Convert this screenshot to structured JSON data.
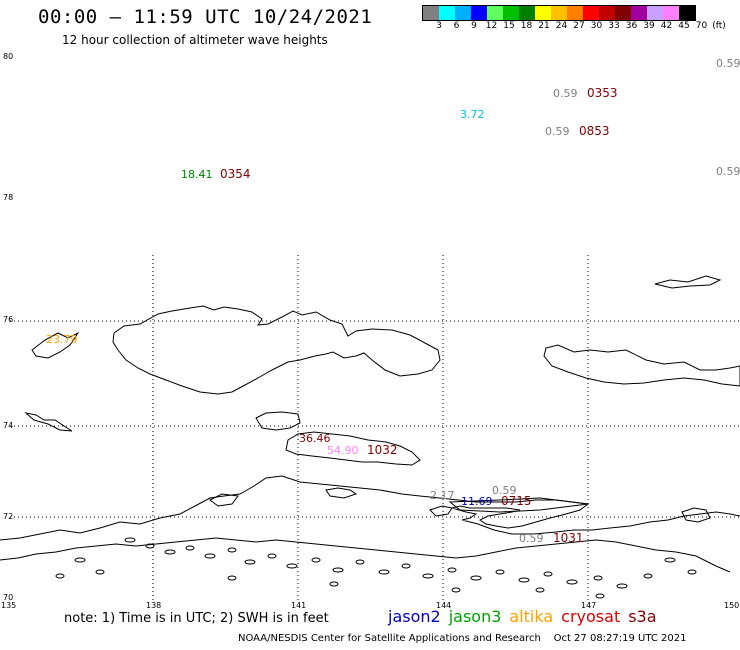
{
  "title": "00:00 – 11:59 UTC 10/24/2021",
  "subtitle": "12 hour collection of altimeter wave heights",
  "colorbar": {
    "colors": [
      "#808080",
      "#00ffff",
      "#00b0ff",
      "#0000ff",
      "#60ff60",
      "#00c000",
      "#008000",
      "#ffff00",
      "#ffc000",
      "#ff8000",
      "#ff0000",
      "#c00000",
      "#800000",
      "#a000a0",
      "#c8a0ff",
      "#ff80ff",
      "#000000"
    ],
    "labels": [
      "3",
      "6",
      "9",
      "12",
      "15",
      "18",
      "21",
      "24",
      "27",
      "30",
      "33",
      "36",
      "39",
      "42",
      "45",
      "70",
      "(ft)"
    ]
  },
  "axes": {
    "lat_labels": [
      "80",
      "78",
      "76",
      "74",
      "72",
      "70"
    ],
    "lon_labels": [
      "135",
      "138",
      "141",
      "144",
      "147",
      "150"
    ]
  },
  "observations": [
    {
      "value": "0.59",
      "color": "#808080"
    },
    {
      "value": "0.59",
      "color": "#808080",
      "time": "0353",
      "time_color": "#800000"
    },
    {
      "value": "3.72",
      "color": "#00c0e0"
    },
    {
      "value": "0.59",
      "color": "#808080",
      "time": "0853",
      "time_color": "#800000"
    },
    {
      "value": "18.41",
      "color": "#008000",
      "time": "0354",
      "time_color": "#800000"
    },
    {
      "value": "0.59",
      "color": "#808080"
    },
    {
      "value": "23.79",
      "color": "#ffa000"
    },
    {
      "value": "36.46",
      "color": "#800000"
    },
    {
      "value": "54.90",
      "color": "#ff80ff",
      "time": "1032",
      "time_color": "#800000"
    },
    {
      "value": "0.59",
      "color": "#808080"
    },
    {
      "value": "2.17",
      "color": "#808080"
    },
    {
      "value": "11.69",
      "color": "#0000c0",
      "time": "0715",
      "time_color": "#800000"
    },
    {
      "value": "0.59",
      "color": "#808080",
      "time": "1031",
      "time_color": "#800000"
    }
  ],
  "note": "note: 1) Time is in UTC; 2) SWH is in feet",
  "legend": [
    {
      "label": "jason2",
      "color": "#0000c0"
    },
    {
      "label": "jason3",
      "color": "#00a000"
    },
    {
      "label": "altika",
      "color": "#ffa000"
    },
    {
      "label": "cryosat",
      "color": "#e00000"
    },
    {
      "label": "s3a",
      "color": "#800000"
    }
  ],
  "footer": {
    "source": "NOAA/NESDIS Center for Satellite Applications and Research",
    "timestamp": "Oct 27 08:27:19 UTC 2021"
  }
}
